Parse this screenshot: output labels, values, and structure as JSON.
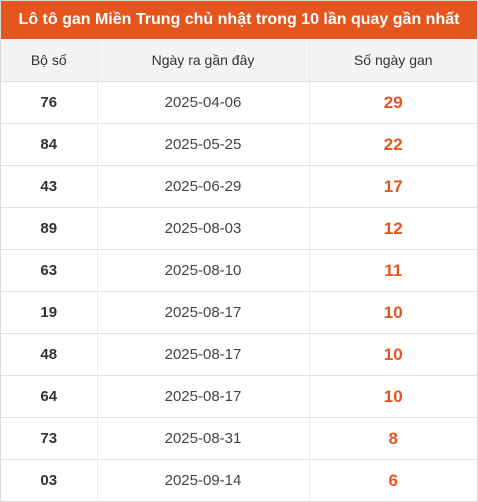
{
  "title": "Lô tô gan Miền Trung chủ nhật trong 10 lần quay gần nhất",
  "colors": {
    "accent": "#e5561e",
    "header_bg": "#f4f4f4"
  },
  "table": {
    "headers": [
      "Bộ số",
      "Ngày ra gần đây",
      "Số ngày gan"
    ],
    "rows": [
      {
        "number": "76",
        "date": "2025-04-06",
        "days": "29"
      },
      {
        "number": "84",
        "date": "2025-05-25",
        "days": "22"
      },
      {
        "number": "43",
        "date": "2025-06-29",
        "days": "17"
      },
      {
        "number": "89",
        "date": "2025-08-03",
        "days": "12"
      },
      {
        "number": "63",
        "date": "2025-08-10",
        "days": "11"
      },
      {
        "number": "19",
        "date": "2025-08-17",
        "days": "10"
      },
      {
        "number": "48",
        "date": "2025-08-17",
        "days": "10"
      },
      {
        "number": "64",
        "date": "2025-08-17",
        "days": "10"
      },
      {
        "number": "73",
        "date": "2025-08-31",
        "days": "8"
      },
      {
        "number": "03",
        "date": "2025-09-14",
        "days": "6"
      }
    ]
  }
}
